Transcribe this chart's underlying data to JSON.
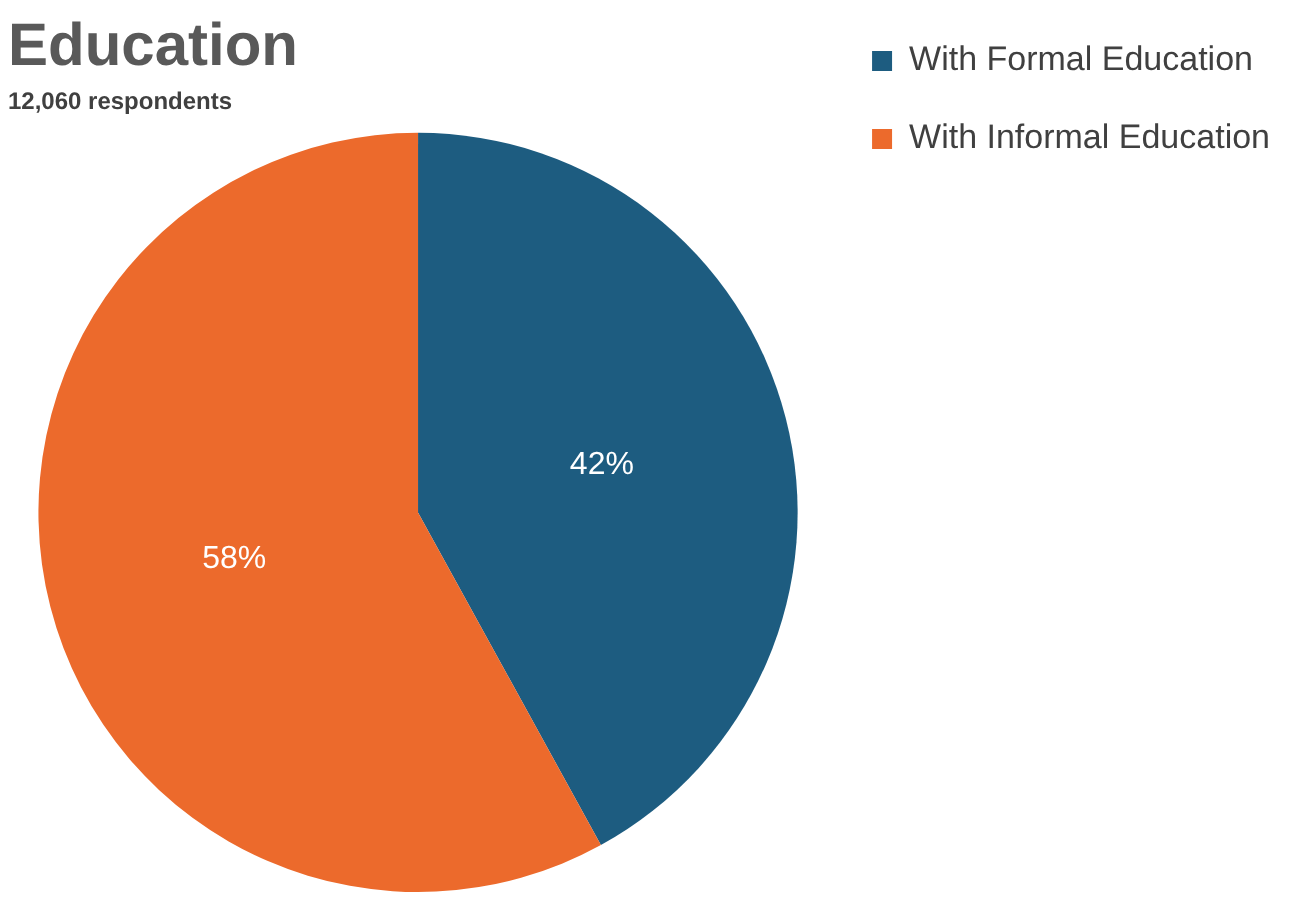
{
  "chart_data": {
    "type": "pie",
    "title": "Education",
    "subtitle": "12,060 respondents",
    "categories": [
      "With Formal Education",
      "With Informal Education"
    ],
    "values": [
      42,
      58
    ],
    "colors": [
      "#1d5c80",
      "#ec6a2c"
    ],
    "value_labels": [
      "42%",
      "58%"
    ],
    "legend": "top right"
  }
}
